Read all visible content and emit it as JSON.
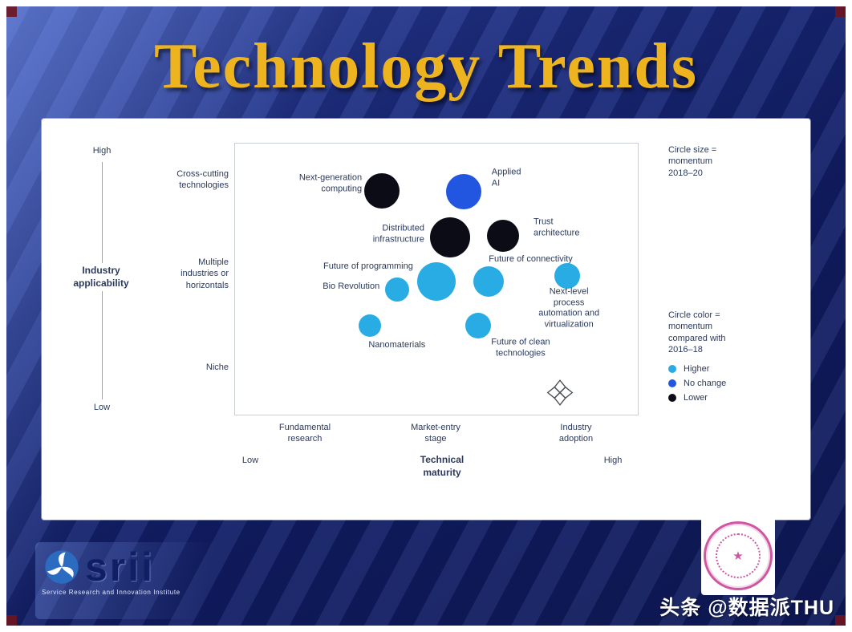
{
  "slide": {
    "title": "Technology Trends"
  },
  "chart_data": {
    "type": "scatter",
    "title": "Technology Trends",
    "x_axis": {
      "title": "Technical\nmaturity",
      "min_label": "Low",
      "max_label": "High",
      "stages": [
        "Fundamental\nresearch",
        "Market-entry\nstage",
        "Industry\nadoption"
      ]
    },
    "y_axis": {
      "title": "Industry\napplicability",
      "max_label": "High",
      "min_label": "Low",
      "categories": [
        "Cross-cutting\ntechnologies",
        "Multiple\nindustries or\nhorizontals",
        "Niche"
      ]
    },
    "size_legend": "Circle size =\nmomentum\n2018–20",
    "color_legend_title": "Circle color =\nmomentum\ncompared with\n2016–18",
    "color_legend_items": [
      {
        "label": "Higher",
        "key": "higher",
        "color": "#29ace4"
      },
      {
        "label": "No change",
        "key": "no_change",
        "color": "#2356e0"
      },
      {
        "label": "Lower",
        "key": "lower",
        "color": "#0c0c16"
      }
    ],
    "colors": {
      "higher": "#29ace4",
      "no_change": "#2356e0",
      "lower": "#0c0c16"
    },
    "points": [
      {
        "id": "next-generation-computing",
        "name": "Next-generation computing",
        "x": 36.5,
        "y": 82.5,
        "r": 22,
        "trend": "lower",
        "label": {
          "text": "Next-generation\ncomputing",
          "x": 31.5,
          "y": 14.8,
          "align": "right"
        }
      },
      {
        "id": "applied-ai",
        "name": "Applied AI",
        "x": 56.8,
        "y": 82.2,
        "r": 22,
        "trend": "no_change",
        "label": {
          "text": "Applied\nAI",
          "x": 63.7,
          "y": 12.7,
          "align": "left"
        }
      },
      {
        "id": "distributed-infrastructure",
        "name": "Distributed infrastructure",
        "x": 53.4,
        "y": 65.4,
        "r": 25,
        "trend": "lower",
        "label": {
          "text": "Distributed\ninfrastructure",
          "x": 47.0,
          "y": 33.4,
          "align": "right"
        }
      },
      {
        "id": "trust-architecture",
        "name": "Trust architecture",
        "x": 66.5,
        "y": 66.0,
        "r": 20,
        "trend": "lower",
        "label": {
          "text": "Trust\narchitecture",
          "x": 74.1,
          "y": 31.1,
          "align": "left"
        }
      },
      {
        "id": "future-of-programming",
        "name": "Future of programming",
        "x": 50.0,
        "y": 49.1,
        "r": 24,
        "trend": "higher",
        "label": {
          "text": "Future of programming",
          "x": 44.2,
          "y": 45.6,
          "align": "right"
        }
      },
      {
        "id": "future-of-connectivity",
        "name": "Future of connectivity",
        "x": 62.9,
        "y": 49.1,
        "r": 19,
        "trend": "higher",
        "label": {
          "text": "Future of connectivity",
          "x": 63.0,
          "y": 42.9,
          "align": "left"
        }
      },
      {
        "id": "bio-revolution",
        "name": "Bio Revolution",
        "x": 40.2,
        "y": 46.2,
        "r": 15,
        "trend": "higher",
        "label": {
          "text": "Bio Revolution",
          "x": 35.9,
          "y": 53.0,
          "align": "right"
        }
      },
      {
        "id": "next-level-process-automation",
        "name": "Next-level process automation and virtualization",
        "x": 82.5,
        "y": 51.2,
        "r": 16,
        "trend": "higher",
        "label": {
          "text": "Next-level process\nautomation and\nvirtualization",
          "x": 82.9,
          "y": 60.9,
          "align": "center"
        }
      },
      {
        "id": "nanomaterials",
        "name": "Nanomaterials",
        "x": 33.5,
        "y": 32.8,
        "r": 14,
        "trend": "higher",
        "label": {
          "text": "Nanomaterials",
          "x": 40.2,
          "y": 74.6,
          "align": "center"
        }
      },
      {
        "id": "future-of-clean-technologies",
        "name": "Future of clean technologies",
        "x": 60.4,
        "y": 32.8,
        "r": 16,
        "trend": "higher",
        "label": {
          "text": "Future of clean\ntechnologies",
          "x": 70.9,
          "y": 75.4,
          "align": "center"
        }
      }
    ]
  },
  "footer": {
    "srii_name": "srii",
    "srii_subtitle": "Service Research and Innovation Institute",
    "watermark": "头条 @数据派THU"
  }
}
